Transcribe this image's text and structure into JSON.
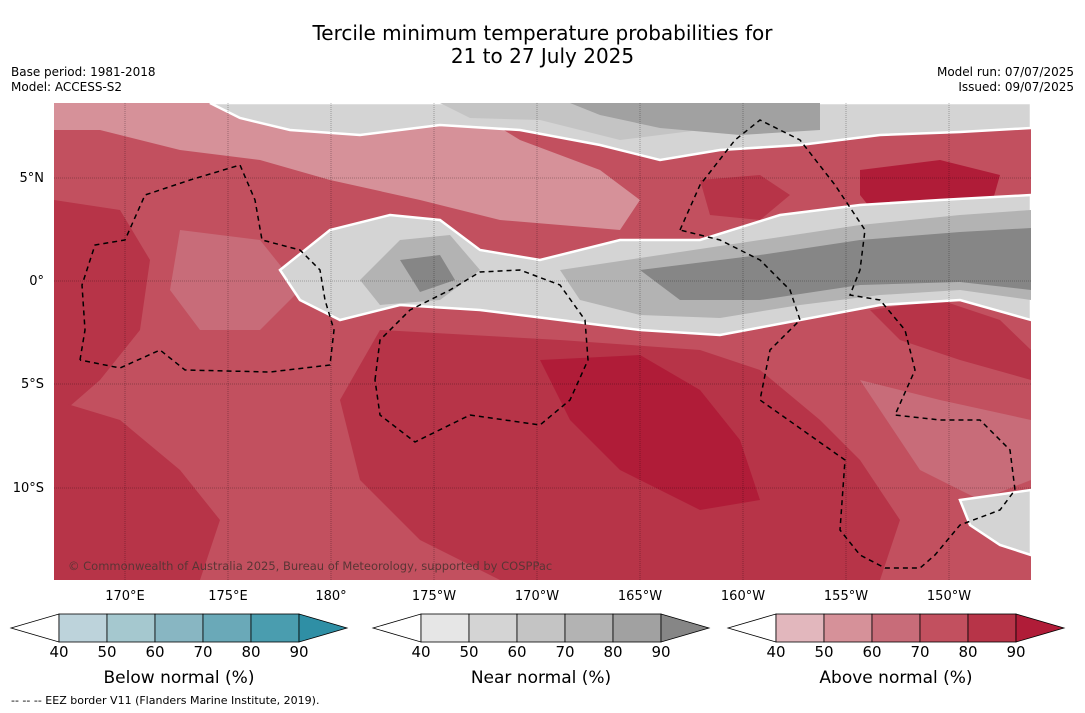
{
  "title_line1": "Tercile minimum temperature probabilities for",
  "title_line2": "21 to 27 July 2025",
  "meta_left": {
    "base_period": "Base period: 1981-2018",
    "model": "Model: ACCESS-S2"
  },
  "meta_right": {
    "model_run": "Model run: 07/07/2025",
    "issued": "Issued: 09/07/2025"
  },
  "lat_labels": [
    "5°N",
    "0°",
    "5°S",
    "10°S"
  ],
  "lon_labels": [
    "170°E",
    "175°E",
    "180°",
    "175°W",
    "170°W",
    "165°W",
    "160°W",
    "155°W",
    "150°W"
  ],
  "copyright": "© Commonwealth of Australia 2025, Bureau of Meteorology, supported by COSPPac",
  "footnote": "--  --  -- EEZ border V11 (Flanders Marine Institute, 2019).",
  "colorbars": [
    {
      "title": "Below normal (%)",
      "ticks": [
        "40",
        "50",
        "60",
        "70",
        "80",
        "90"
      ],
      "colors": [
        "#ffffff",
        "#bdd3db",
        "#a5c8cf",
        "#88b6c2",
        "#6aa9b8",
        "#4a9daf",
        "#2f8fa5"
      ]
    },
    {
      "title": "Near normal (%)",
      "ticks": [
        "40",
        "50",
        "60",
        "70",
        "80",
        "90"
      ],
      "colors": [
        "#ffffff",
        "#e6e6e6",
        "#d4d4d4",
        "#c4c4c4",
        "#b3b3b3",
        "#a1a1a1",
        "#868686"
      ]
    },
    {
      "title": "Above normal (%)",
      "ticks": [
        "40",
        "50",
        "60",
        "70",
        "80",
        "90"
      ],
      "colors": [
        "#ffffff",
        "#e2b7bd",
        "#d69199",
        "#c86c79",
        "#c2505f",
        "#b73448",
        "#b01c38"
      ]
    }
  ],
  "map_colors": {
    "above_50": "#d69199",
    "above_60": "#c86c79",
    "above_70": "#c2505f",
    "above_80": "#b73448",
    "above_90": "#b01c38",
    "near_40": "#e6e6e6",
    "near_50": "#d4d4d4",
    "near_60": "#c4c4c4",
    "near_70": "#b3b3b3",
    "near_80": "#a1a1a1",
    "near_90": "#868686"
  }
}
